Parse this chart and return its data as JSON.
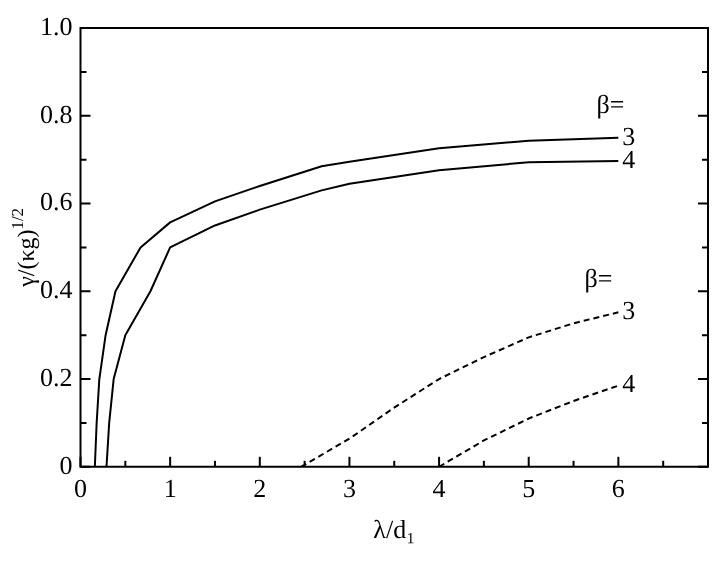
{
  "chart_data": {
    "type": "line",
    "xlabel": "λ/d₁",
    "ylabel": "γ/(κg)$^{1/2}$",
    "xlim": [
      0,
      7
    ],
    "xticks": [
      0,
      {
        "value": 0.5,
        "label": null
      },
      1,
      {
        "value": 1.5,
        "label": null
      },
      2,
      {
        "value": 2.5,
        "label": null
      },
      3,
      {
        "value": 3.5,
        "label": null
      },
      4,
      {
        "value": 4.5,
        "label": null
      },
      5,
      {
        "value": 5.5,
        "label": null
      },
      6,
      {
        "value": 6.5,
        "label": null
      }
    ],
    "ylim": [
      0,
      1
    ],
    "yticks": [
      0,
      {
        "value": 0.1,
        "label": null
      },
      {
        "value": 0.2,
        "label": "0.2"
      },
      {
        "value": 0.3,
        "label": null
      },
      {
        "value": 0.4,
        "label": "0.4"
      },
      {
        "value": 0.5,
        "label": null
      },
      {
        "value": 0.6,
        "label": "0.6"
      },
      {
        "value": 0.7,
        "label": null
      },
      {
        "value": 0.8,
        "label": "0.8"
      },
      {
        "value": 0.9,
        "label": null
      },
      {
        "value": 1,
        "label": "1.0"
      }
    ],
    "grid": false,
    "legend": "right",
    "marker": "none",
    "annotations": [
      "β=",
      "β="
    ],
    "series": [
      {
        "name": "3",
        "color": "#000000",
        "line_style": "solid",
        "x": [
          0.16,
          0.18,
          0.21,
          0.28,
          0.39,
          0.67,
          1,
          1.5,
          2,
          2.69,
          3,
          4,
          5,
          6
        ],
        "values": [
          0,
          0.1,
          0.2,
          0.3,
          0.4,
          0.5,
          0.557,
          0.605,
          0.64,
          0.685,
          0.695,
          0.726,
          0.743,
          0.75
        ]
      },
      {
        "name": "4",
        "color": "#000000",
        "line_style": "solid",
        "x": [
          0.29,
          0.32,
          0.37,
          0.5,
          0.78,
          1,
          1.5,
          2,
          2.69,
          3,
          4,
          5,
          6
        ],
        "values": [
          0,
          0.1,
          0.2,
          0.3,
          0.4,
          0.5,
          0.55,
          0.586,
          0.63,
          0.645,
          0.676,
          0.694,
          0.697
        ]
      },
      {
        "name": "3",
        "color": "#000000",
        "line_style": "dashed",
        "x": [
          2.46,
          3,
          3.5,
          4,
          4.5,
          5,
          5.5,
          6
        ],
        "values": [
          0,
          0.064,
          0.135,
          0.2,
          0.25,
          0.295,
          0.327,
          0.352
        ]
      },
      {
        "name": "4",
        "color": "#000000",
        "line_style": "dashed",
        "x": [
          4,
          4.5,
          5,
          5.5,
          6
        ],
        "values": [
          0,
          0.06,
          0.11,
          0.15,
          0.185
        ]
      }
    ]
  }
}
